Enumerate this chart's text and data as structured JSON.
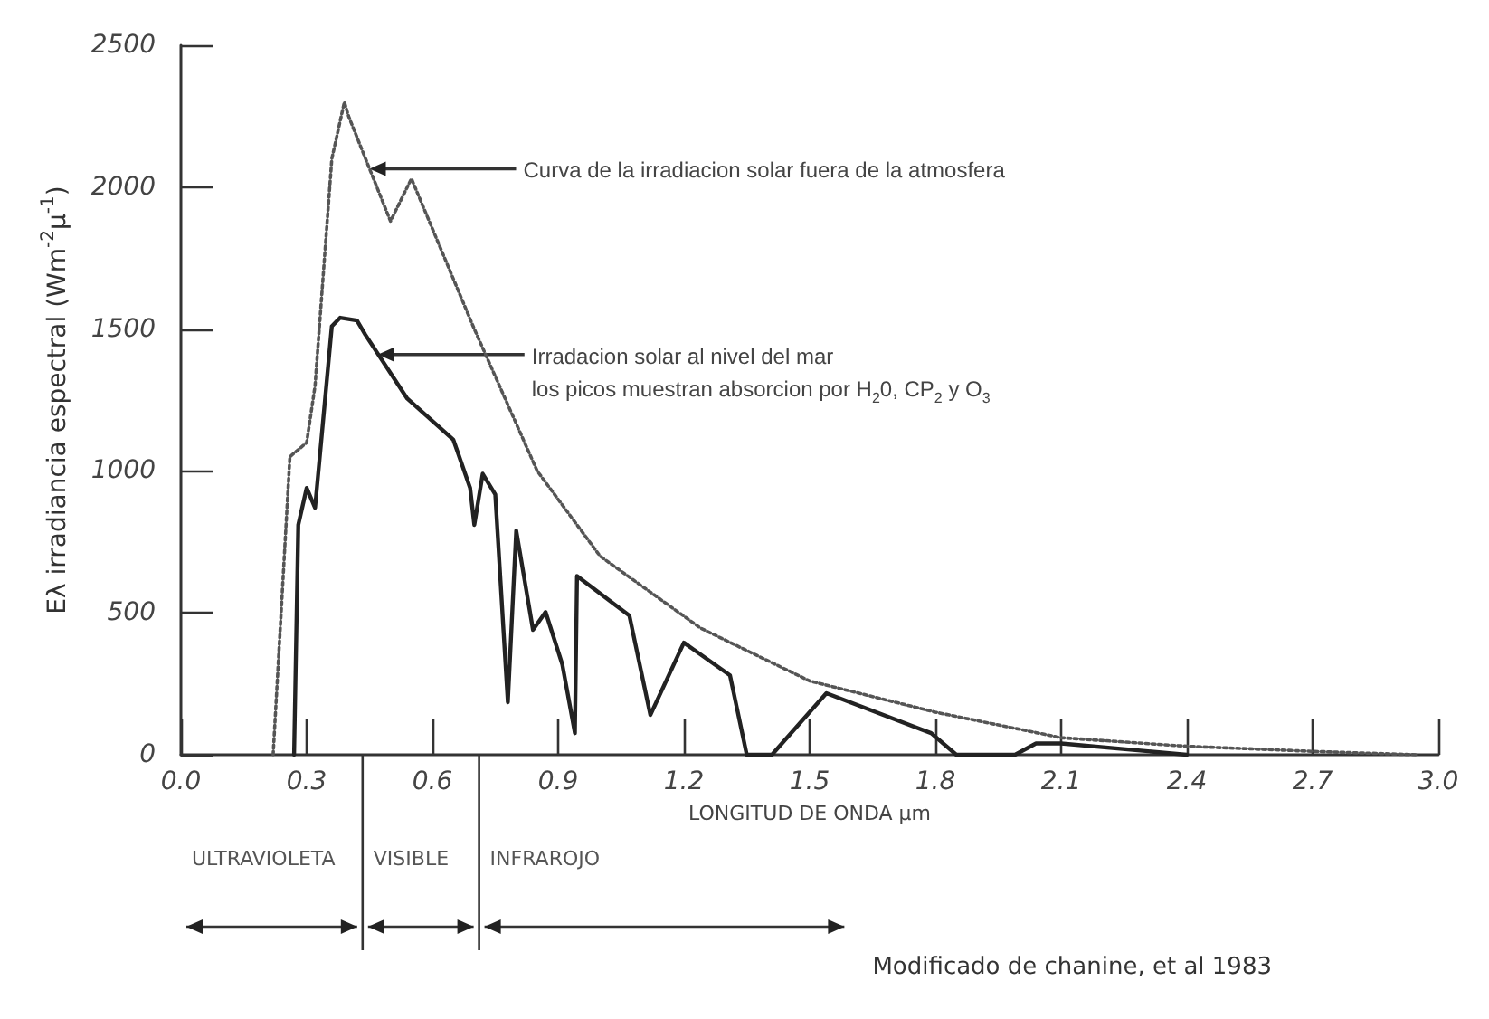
{
  "chart_data": {
    "type": "line",
    "xlabel": "LONGITUD DE ONDA µm",
    "ylabel": "Eλ irradiancia espectral (Wm$^{-2}$µ$^{-1}$)",
    "xlim": [
      0,
      3
    ],
    "ylim": [
      0,
      2500
    ],
    "xticks": [
      {
        "value": 0,
        "label": "0.0"
      },
      {
        "value": 0.3,
        "label": "0.3"
      },
      {
        "value": 0.6,
        "label": "0.6"
      },
      {
        "value": 0.9,
        "label": "0.9"
      },
      {
        "value": 1.2,
        "label": "1.2"
      },
      {
        "value": 1.5,
        "label": "1.5"
      },
      {
        "value": 1.8,
        "label": "1.8"
      },
      {
        "value": 2.1,
        "label": "2.1"
      },
      {
        "value": 2.4,
        "label": "2.4"
      },
      {
        "value": 2.7,
        "label": "2.7"
      },
      {
        "value": 3,
        "label": "3.0"
      }
    ],
    "yticks": [
      0,
      500,
      1000,
      1500,
      2000,
      2500
    ],
    "marker": "none",
    "series": [
      {
        "color": "#555555",
        "line_style": "dotted",
        "x": [
          0.22,
          0.26,
          0.3,
          0.32,
          0.36,
          0.39,
          0.4,
          0.5,
          0.55,
          0.7,
          0.85,
          1.0,
          1.24,
          1.5,
          1.8,
          2.1,
          2.4,
          2.7,
          2.95
        ],
        "values": [
          0,
          1050,
          1100,
          1300,
          2100,
          2300,
          2250,
          1880,
          2030,
          1500,
          1000,
          700,
          446,
          260,
          150,
          60,
          30,
          12,
          0
        ]
      },
      {
        "color": "#222222",
        "line_style": "solid",
        "x": [
          0.27,
          0.28,
          0.3,
          0.32,
          0.36,
          0.38,
          0.42,
          0.44,
          0.54,
          0.65,
          0.69,
          0.7,
          0.72,
          0.75,
          0.78,
          0.8,
          0.84,
          0.87,
          0.91,
          0.94,
          0.945,
          1.07,
          1.12,
          1.2,
          1.31,
          1.35,
          1.41,
          1.54,
          1.79,
          1.85,
          1.99,
          2.04,
          2.1,
          2.4
        ],
        "values": [
          0,
          810,
          940,
          870,
          1510,
          1540,
          1530,
          1480,
          1255,
          1110,
          940,
          810,
          990,
          917,
          185,
          790,
          440,
          503,
          318,
          76,
          630,
          490,
          140,
          395,
          280,
          0,
          0,
          217,
          76,
          0,
          0,
          40,
          40,
          0
        ]
      }
    ],
    "annotations": [
      {
        "text": "Curva de la irradiacion solar fuera de la atmosfera",
        "x": 0.45,
        "y": 2065
      },
      {
        "text": "Irradacion solar al nivel del mar\nlos picos muestran absorcion por H$_{2}$0, CP$_{2}$ y O$_{3}$",
        "x": 0.47,
        "y": 1410
      },
      "ULTRAVIOLETA",
      "VISIBLE",
      "INFRAROJO",
      "Modificado de chanine, et al 1983"
    ]
  }
}
